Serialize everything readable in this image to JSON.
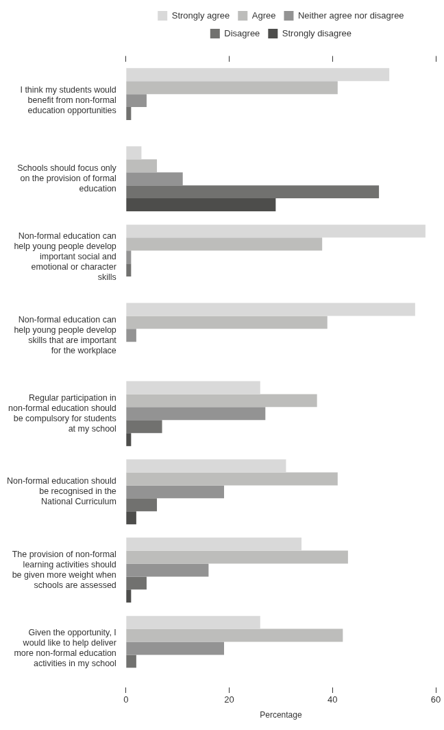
{
  "chart_data": {
    "type": "bar",
    "orientation": "horizontal",
    "xlabel": "Percentage",
    "categories": [
      "I think my students would benefit from non-formal education opportunities",
      "Schools should focus only on the provision of formal education",
      "Non-formal education can help young people develop important social and emotional or character skills",
      "Non-formal education can help young people develop skills that are important for the workplace",
      "Regular participation in non-formal education should be compulsory for students at my school",
      "Non-formal education should be recognised in the National Curriculum",
      "The provision of non-formal learning activities should be given more weight when schools are assessed",
      "Given the opportunity, I would like to help deliver more non-formal education activities in my school"
    ],
    "series": [
      {
        "name": "Strongly agree",
        "color": "#d9d9d9",
        "values": [
          51,
          3,
          58,
          56,
          26,
          31,
          34,
          26
        ]
      },
      {
        "name": "Agree",
        "color": "#bdbdbb",
        "values": [
          41,
          6,
          38,
          39,
          37,
          41,
          43,
          42
        ]
      },
      {
        "name": "Neither agree nor disagree",
        "color": "#939393",
        "values": [
          4,
          11,
          1,
          2,
          27,
          19,
          16,
          19
        ]
      },
      {
        "name": "Disagree",
        "color": "#71716f",
        "values": [
          1,
          49,
          1,
          0,
          7,
          6,
          4,
          2
        ]
      },
      {
        "name": "Strongly disagree",
        "color": "#4d4d4b",
        "values": [
          0,
          29,
          0,
          0,
          1,
          2,
          1,
          0
        ]
      }
    ],
    "xlim": [
      0,
      60
    ],
    "xticks": [
      0,
      20,
      40,
      60
    ],
    "grid": false,
    "legend": "top"
  }
}
